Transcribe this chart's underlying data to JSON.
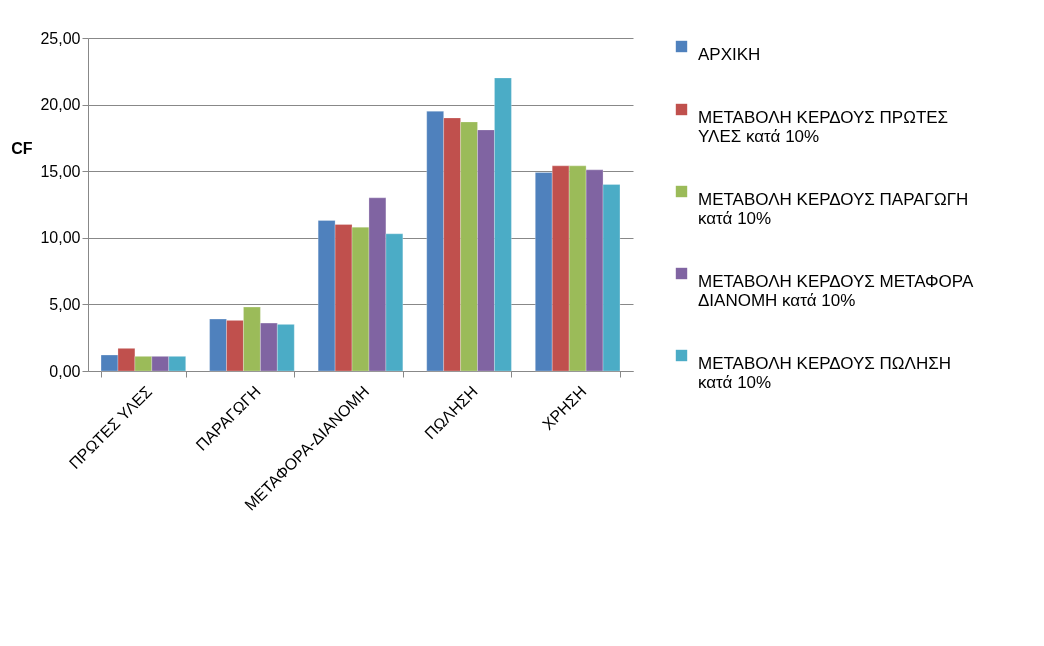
{
  "chart_data": {
    "type": "bar",
    "ylabel": "CF",
    "categories": [
      "ΠΡΩΤΕΣ ΥΛΕΣ",
      "ΠΑΡΑΓΩΓΗ",
      "ΜΕΤΑΦΟΡΑ-ΔΙΑΝΟΜΗ",
      "ΠΩΛΗΣΗ",
      "ΧΡΗΣΗ"
    ],
    "series": [
      {
        "name": "ΑΡΧΙΚΗ",
        "color": "#4f81bd",
        "values": [
          1.2,
          3.9,
          11.3,
          19.5,
          14.9
        ]
      },
      {
        "name": "ΜΕΤΑΒΟΛΗ ΚΕΡΔΟΥΣ ΠΡΩΤΕΣ ΥΛΕΣ κατά 10%",
        "color": "#c0504d",
        "values": [
          1.7,
          3.8,
          11.0,
          19.0,
          15.4
        ]
      },
      {
        "name": "ΜΕΤΑΒΟΛΗ ΚΕΡΔΟΥΣ ΠΑΡΑΓΩΓΗ κατά 10%",
        "color": "#9bbb59",
        "values": [
          1.1,
          4.8,
          10.8,
          18.7,
          15.4
        ]
      },
      {
        "name": "ΜΕΤΑΒΟΛΗ ΚΕΡΔΟΥΣ ΜΕΤΑΦΟΡΑ ΔΙΑΝΟΜΗ κατά 10%",
        "color": "#8064a2",
        "values": [
          1.1,
          3.6,
          13.0,
          18.1,
          15.1
        ]
      },
      {
        "name": "ΜΕΤΑΒΟΛΗ ΚΕΡΔΟΥΣ ΠΩΛΗΣΗ κατά 10%",
        "color": "#4bacc6",
        "values": [
          1.1,
          3.5,
          10.3,
          22.0,
          14.0
        ]
      }
    ],
    "ylim": [
      0,
      25
    ],
    "yticks": [
      {
        "value": 0,
        "label": "0,00"
      },
      {
        "value": 5,
        "label": "5,00"
      },
      {
        "value": 10,
        "label": "10,00"
      },
      {
        "value": 15,
        "label": "15,00"
      },
      {
        "value": 20,
        "label": "20,00"
      },
      {
        "value": 25,
        "label": "25,00"
      }
    ],
    "grid": "y",
    "legend": "right"
  }
}
